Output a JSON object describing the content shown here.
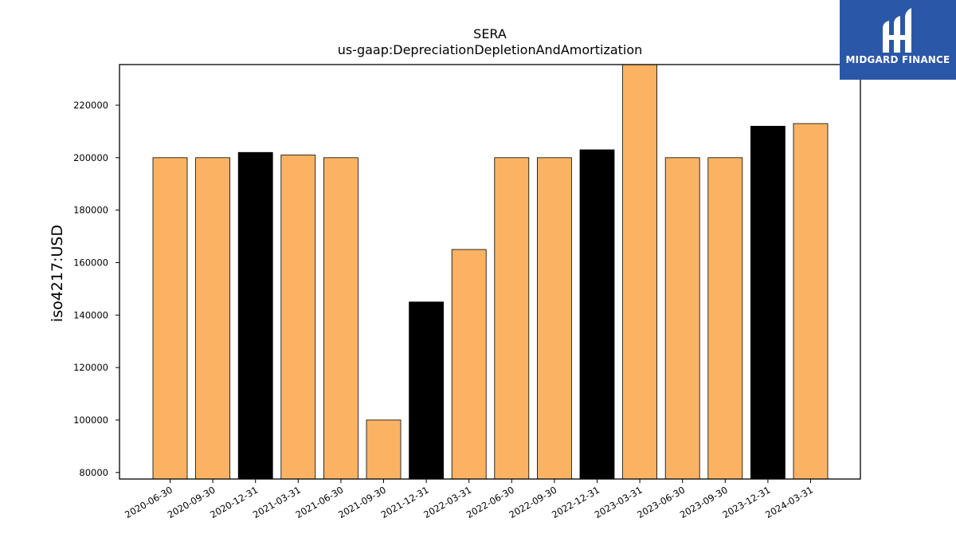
{
  "chart_data": {
    "type": "bar",
    "title": "SERA",
    "subtitle": "us-gaap:DepreciationDepletionAndAmortization",
    "xlabel": "",
    "ylabel": "iso4217:USD",
    "categories": [
      "2020-06-30",
      "2020-09-30",
      "2020-12-31",
      "2021-03-31",
      "2021-06-30",
      "2021-09-30",
      "2021-12-31",
      "2022-03-31",
      "2022-06-30",
      "2022-09-30",
      "2022-12-31",
      "2023-03-31",
      "2023-06-30",
      "2023-09-30",
      "2023-12-31",
      "2024-03-31"
    ],
    "values": [
      200000,
      200000,
      202000,
      201000,
      200000,
      100000,
      145000,
      165000,
      200000,
      200000,
      203000,
      236000,
      200000,
      200000,
      212000,
      213000
    ],
    "bar_colors": [
      "#fbb363",
      "#fbb363",
      "#000000",
      "#fbb363",
      "#fbb363",
      "#fbb363",
      "#000000",
      "#fbb363",
      "#fbb363",
      "#fbb363",
      "#000000",
      "#fbb363",
      "#fbb363",
      "#fbb363",
      "#000000",
      "#fbb363"
    ],
    "ylim": [
      77500,
      235500
    ],
    "yticks": [
      80000,
      100000,
      120000,
      140000,
      160000,
      180000,
      200000,
      220000
    ],
    "grid": false,
    "legend": "none"
  },
  "logo": {
    "text": "MIDGARD FINANCE",
    "background": "#2b57a8"
  }
}
